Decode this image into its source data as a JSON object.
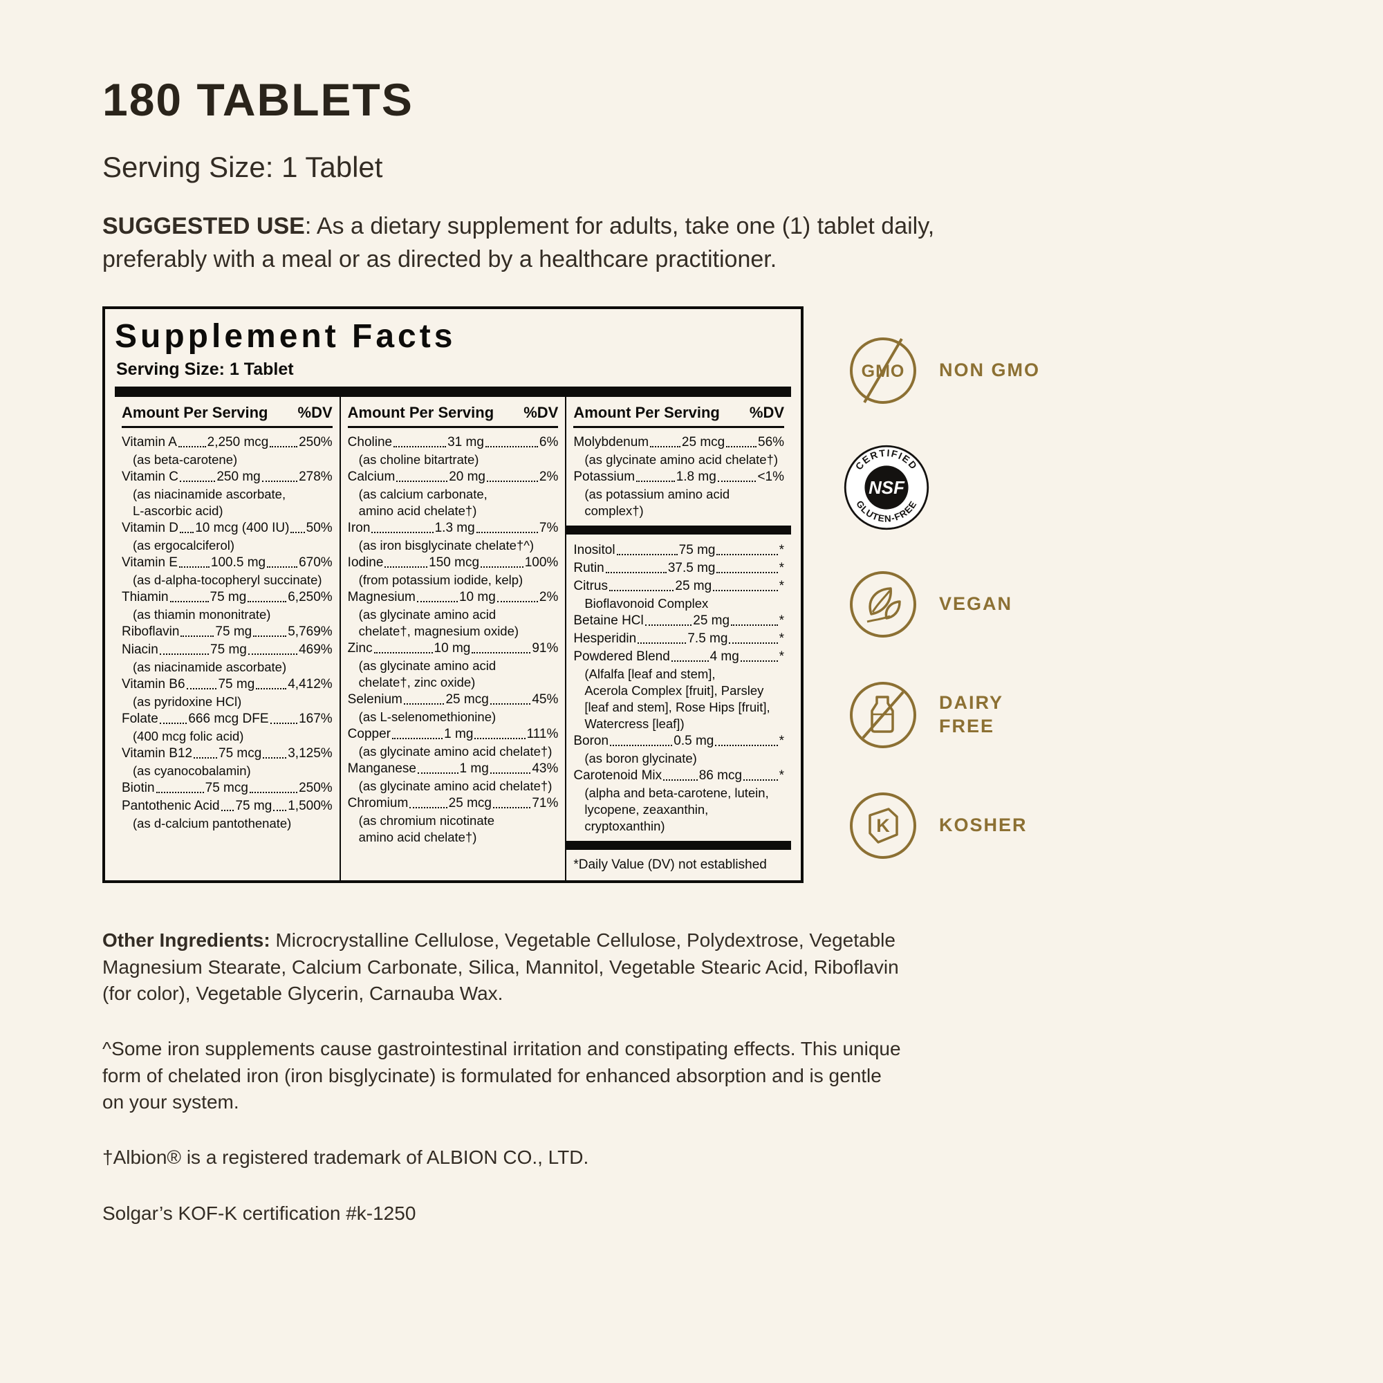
{
  "header": {
    "title": "180 TABLETS",
    "serving": "Serving Size: 1 Tablet",
    "suggested_use_label": "SUGGESTED USE",
    "suggested_use_text": ": As a dietary supplement for adults, take one (1) tablet daily, preferably with a meal or as directed by a healthcare practitioner."
  },
  "panel": {
    "title": "Supplement Facts",
    "serving": "Serving Size: 1 Tablet",
    "col_header_amount": "Amount Per Serving",
    "col_header_dv": "%DV",
    "columns": [
      {
        "sections": [
          {
            "rows": [
              {
                "name": "Vitamin A",
                "amount": "2,250 mcg",
                "dv": "250%",
                "subs": [
                  "(as beta-carotene)"
                ]
              },
              {
                "name": "Vitamin C",
                "amount": "250 mg",
                "dv": "278%",
                "subs": [
                  "(as niacinamide ascorbate,",
                  "L-ascorbic acid)"
                ]
              },
              {
                "name": "Vitamin D",
                "amount": "10 mcg (400 IU)",
                "dv": "50%",
                "subs": [
                  "(as ergocalciferol)"
                ]
              },
              {
                "name": "Vitamin E",
                "amount": "100.5 mg",
                "dv": "670%",
                "subs": [
                  "(as d-alpha-tocopheryl succinate)"
                ]
              },
              {
                "name": "Thiamin",
                "amount": "75 mg",
                "dv": "6,250%",
                "subs": [
                  "(as thiamin mononitrate)"
                ]
              },
              {
                "name": "Riboflavin",
                "amount": "75 mg",
                "dv": "5,769%",
                "subs": []
              },
              {
                "name": "Niacin",
                "amount": "75 mg",
                "dv": "469%",
                "subs": [
                  "(as niacinamide ascorbate)"
                ]
              },
              {
                "name": "Vitamin B6",
                "amount": "75 mg",
                "dv": "4,412%",
                "subs": [
                  "(as pyridoxine HCl)"
                ]
              },
              {
                "name": "Folate",
                "amount": "666 mcg DFE",
                "dv": "167%",
                "subs": [
                  "(400 mcg folic acid)"
                ]
              },
              {
                "name": "Vitamin B12",
                "amount": "75 mcg",
                "dv": "3,125%",
                "subs": [
                  "(as cyanocobalamin)"
                ]
              },
              {
                "name": "Biotin",
                "amount": "75 mcg",
                "dv": "250%",
                "subs": []
              },
              {
                "name": "Pantothenic Acid",
                "amount": "75 mg",
                "dv": "1,500%",
                "subs": [
                  "(as d-calcium pantothenate)"
                ]
              }
            ]
          }
        ]
      },
      {
        "sections": [
          {
            "rows": [
              {
                "name": "Choline",
                "amount": "31 mg",
                "dv": "6%",
                "subs": [
                  "(as choline bitartrate)"
                ]
              },
              {
                "name": "Calcium",
                "amount": "20 mg",
                "dv": "2%",
                "subs": [
                  "(as calcium carbonate,",
                  "amino acid chelate†)"
                ]
              },
              {
                "name": "Iron",
                "amount": "1.3 mg",
                "dv": "7%",
                "subs": [
                  "(as iron bisglycinate chelate†^)"
                ]
              },
              {
                "name": "Iodine",
                "amount": "150 mcg",
                "dv": "100%",
                "subs": [
                  "(from potassium iodide, kelp)"
                ]
              },
              {
                "name": "Magnesium",
                "amount": "10 mg",
                "dv": "2%",
                "subs": [
                  "(as glycinate amino acid",
                  "chelate†, magnesium oxide)"
                ]
              },
              {
                "name": "Zinc",
                "amount": "10 mg",
                "dv": "91%",
                "subs": [
                  "(as glycinate amino acid",
                  "chelate†, zinc oxide)"
                ]
              },
              {
                "name": "Selenium",
                "amount": "25 mcg",
                "dv": "45%",
                "subs": [
                  "(as L-selenomethionine)"
                ]
              },
              {
                "name": "Copper",
                "amount": "1 mg",
                "dv": "111%",
                "subs": [
                  "(as glycinate amino acid chelate†)"
                ]
              },
              {
                "name": "Manganese",
                "amount": "1 mg",
                "dv": "43%",
                "subs": [
                  "(as glycinate amino acid chelate†)"
                ]
              },
              {
                "name": "Chromium",
                "amount": "25 mcg",
                "dv": "71%",
                "subs": [
                  "(as chromium nicotinate",
                  "amino acid chelate†)"
                ]
              }
            ]
          }
        ]
      },
      {
        "sections": [
          {
            "rows": [
              {
                "name": "Molybdenum",
                "amount": "25 mcg",
                "dv": "56%",
                "subs": [
                  "(as glycinate amino acid chelate†)"
                ]
              },
              {
                "name": "Potassium",
                "amount": "1.8 mg",
                "dv": "<1%",
                "subs": [
                  "(as potassium amino acid complex†)"
                ]
              }
            ]
          },
          {
            "rows": [
              {
                "name": "Inositol",
                "amount": "75 mg",
                "dv": "*",
                "subs": []
              },
              {
                "name": "Rutin",
                "amount": "37.5 mg",
                "dv": "*",
                "subs": []
              },
              {
                "name": "Citrus",
                "amount": "25 mg",
                "dv": "*",
                "subs": [
                  "Bioflavonoid Complex"
                ]
              },
              {
                "name": "Betaine HCl",
                "amount": "25 mg",
                "dv": "*",
                "subs": []
              },
              {
                "name": "Hesperidin",
                "amount": "7.5 mg",
                "dv": "*",
                "subs": []
              },
              {
                "name": "Powdered Blend",
                "amount": "4 mg",
                "dv": "*",
                "subs": [
                  "(Alfalfa [leaf and stem],",
                  "Acerola Complex  [fruit], Parsley",
                  "[leaf and stem], Rose Hips [fruit],",
                  "Watercress [leaf])"
                ]
              },
              {
                "name": "Boron",
                "amount": "0.5 mg",
                "dv": "*",
                "subs": [
                  "(as boron glycinate)"
                ]
              },
              {
                "name": "Carotenoid Mix",
                "amount": "86 mcg",
                "dv": "*",
                "subs": [
                  "(alpha and beta-carotene, lutein,",
                  "lycopene, zeaxanthin, cryptoxanthin)"
                ]
              }
            ]
          }
        ],
        "footnote": "*Daily Value (DV) not established"
      }
    ]
  },
  "badges": {
    "non_gmo": {
      "icon_text": "GMO",
      "label": "NON GMO"
    },
    "nsf": {
      "arc_top": "CERTIFIED",
      "center": "NSF",
      "arc_bottom": "GLUTEN-FREE"
    },
    "vegan": {
      "label": "VEGAN"
    },
    "dairy_free": {
      "label": "DAIRY FREE"
    },
    "kosher": {
      "icon_text": "K",
      "label": "KOSHER"
    }
  },
  "footer": {
    "other_ingredients_label": "Other Ingredients:",
    "other_ingredients_text": " Microcrystalline Cellulose, Vegetable Cellulose, Polydextrose, Vegetable Magnesium Stearate, Calcium Carbonate, Silica, Mannitol, Vegetable Stearic Acid, Riboflavin (for color), Vegetable Glycerin, Carnauba Wax.",
    "iron_note": "^Some iron supplements cause gastrointestinal irritation and constipating effects. This unique form of chelated iron (iron bisglycinate) is formulated for enhanced absorption and is gentle on your system.",
    "albion_note": "†Albion® is a registered trademark of ALBION CO., LTD.",
    "kof_k": "Solgar’s KOF-K certification #k-1250"
  }
}
